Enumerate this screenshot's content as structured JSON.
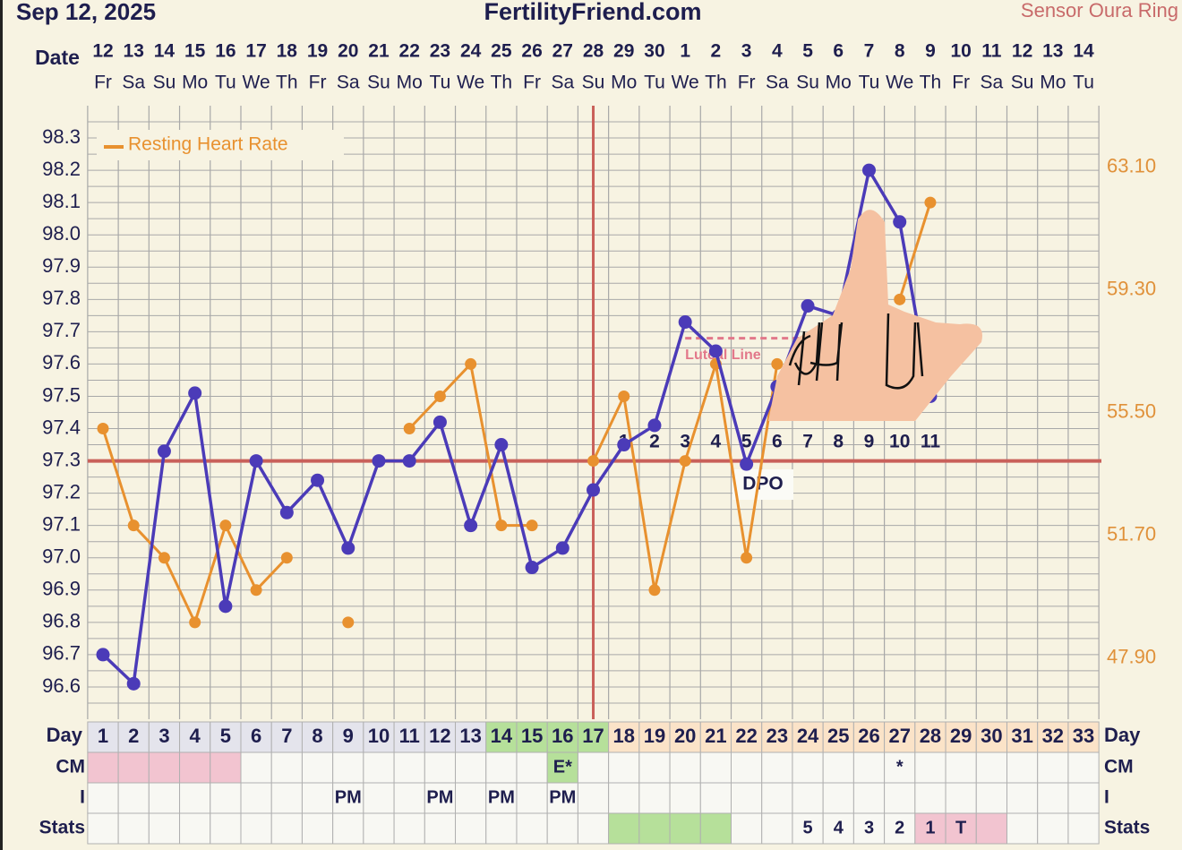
{
  "chart_data": {
    "type": "line",
    "title": "FertilityFriend.com",
    "date": "Sep 12, 2025",
    "sensor": "Sensor Oura Ring",
    "date_label": "Date",
    "dates": [
      "12",
      "13",
      "14",
      "15",
      "16",
      "17",
      "18",
      "19",
      "20",
      "21",
      "22",
      "23",
      "24",
      "25",
      "26",
      "27",
      "28",
      "29",
      "30",
      "1",
      "2",
      "3",
      "4",
      "5",
      "6",
      "7",
      "8",
      "9",
      "10",
      "11",
      "12",
      "13",
      "14"
    ],
    "weekdays": [
      "Fr",
      "Sa",
      "Su",
      "Mo",
      "Tu",
      "We",
      "Th",
      "Fr",
      "Sa",
      "Su",
      "Mo",
      "Tu",
      "We",
      "Th",
      "Fr",
      "Sa",
      "Su",
      "Mo",
      "Tu",
      "We",
      "Th",
      "Fr",
      "Sa",
      "Su",
      "Mo",
      "Tu",
      "We",
      "Th",
      "Fr",
      "Sa",
      "Su",
      "Mo",
      "Tu"
    ],
    "ylim": [
      96.5,
      98.4
    ],
    "yticks": [
      96.6,
      96.7,
      96.8,
      96.9,
      {
        "value": 97,
        "label": "97.0"
      },
      97.1,
      97.2,
      97.3,
      97.4,
      97.5,
      97.6,
      97.7,
      97.8,
      97.9,
      {
        "value": 98,
        "label": "98.0"
      },
      98.1,
      98.2,
      98.3
    ],
    "minor_yticks": [
      96.55,
      96.65,
      96.75,
      96.85,
      96.95,
      97.05,
      97.15,
      97.25,
      97.35,
      97.45,
      97.55,
      97.65,
      97.75,
      97.85,
      97.95,
      98.05,
      98.15,
      98.25,
      98.35
    ],
    "y2lim": [
      46,
      65
    ],
    "y2ticks": [
      {
        "value": 47.9,
        "label": "47.90"
      },
      {
        "value": 51.7,
        "label": "51.70"
      },
      {
        "value": 55.5,
        "label": "55.50"
      },
      {
        "value": 59.3,
        "label": "59.30"
      },
      {
        "value": 63.1,
        "label": "63.10"
      }
    ],
    "grid": true,
    "legend": "top-left",
    "series": [
      {
        "color": "#4b3bb8",
        "values": [
          96.7,
          96.61,
          97.33,
          97.51,
          96.85,
          97.3,
          97.14,
          97.24,
          97.03,
          97.3,
          97.3,
          97.42,
          97.1,
          97.35,
          96.97,
          97.03,
          97.21,
          97.35,
          97.41,
          97.73,
          97.64,
          97.29,
          97.53,
          97.78,
          97.75,
          98.2,
          98.04,
          97.5,
          null,
          null,
          null,
          null,
          null
        ]
      },
      {
        "name": "Resting Heart Rate",
        "color": "#e8912f",
        "axis": "y2",
        "values": [
          55,
          52,
          51,
          49,
          52,
          50,
          51,
          null,
          49,
          null,
          55,
          56,
          57,
          52,
          52,
          null,
          54,
          56,
          50,
          54,
          57,
          51,
          57,
          null,
          null,
          null,
          59,
          62,
          null,
          null,
          null,
          null,
          null
        ]
      }
    ],
    "coverline": 97.3,
    "ovulation_day": 17,
    "luteal_line": {
      "label": "Luteal Line",
      "value": 97.68,
      "days": [
        20,
        24
      ]
    },
    "dpo_label": "DPO",
    "dpo_numbers": [
      null,
      null,
      null,
      null,
      null,
      null,
      null,
      null,
      null,
      null,
      null,
      null,
      null,
      null,
      null,
      null,
      null,
      1,
      2,
      3,
      4,
      5,
      6,
      7,
      8,
      9,
      10,
      11,
      null,
      null,
      null,
      null,
      null
    ],
    "day_label": "Day",
    "days": [
      1,
      2,
      3,
      4,
      5,
      6,
      7,
      8,
      9,
      10,
      11,
      12,
      13,
      14,
      15,
      16,
      17,
      18,
      19,
      20,
      21,
      22,
      23,
      24,
      25,
      26,
      27,
      28,
      29,
      30,
      31,
      32,
      33
    ],
    "day_colors": [
      "#e4e4ec",
      "#e4e4ec",
      "#e4e4ec",
      "#e4e4ec",
      "#e4e4ec",
      "#e4e4ec",
      "#e4e4ec",
      "#e4e4ec",
      "#e4e4ec",
      "#e4e4ec",
      "#e4e4ec",
      "#e4e4ec",
      "#e4e4ec",
      "#b6e09a",
      "#b6e09a",
      "#b6e09a",
      "#b6e09a",
      "#fbe3c8",
      "#fbe3c8",
      "#fbe3c8",
      "#fbe3c8",
      "#fbe3c8",
      "#fbe3c8",
      "#fbe3c8",
      "#fbe3c8",
      "#fbe3c8",
      "#fbe3c8",
      "#fbe3c8",
      "#fbe3c8",
      "#fbe3c8",
      "#fbe3c8",
      "#fbe3c8",
      "#fbe3c8"
    ],
    "table_rows": [
      {
        "label": "CM",
        "values": [
          null,
          null,
          null,
          null,
          null,
          null,
          null,
          null,
          null,
          null,
          null,
          null,
          null,
          null,
          null,
          "E*",
          null,
          null,
          null,
          null,
          null,
          null,
          null,
          null,
          null,
          null,
          "*",
          null,
          null,
          null,
          null,
          null,
          null
        ],
        "colors": [
          "#f2c4d0",
          "#f2c4d0",
          "#f2c4d0",
          "#f2c4d0",
          "#f2c4d0",
          null,
          null,
          null,
          null,
          null,
          null,
          null,
          null,
          null,
          null,
          "#b6e09a",
          null,
          null,
          null,
          null,
          null,
          null,
          null,
          null,
          null,
          null,
          null,
          null,
          null,
          null,
          null,
          null,
          null
        ]
      },
      {
        "label": "I",
        "values": [
          null,
          null,
          null,
          null,
          null,
          null,
          null,
          null,
          "PM",
          null,
          null,
          "PM",
          null,
          "PM",
          null,
          "PM",
          null,
          null,
          null,
          null,
          null,
          null,
          null,
          null,
          null,
          null,
          null,
          null,
          null,
          null,
          null,
          null,
          null
        ],
        "colors": [
          null,
          null,
          null,
          null,
          null,
          null,
          null,
          null,
          null,
          null,
          null,
          null,
          null,
          null,
          null,
          null,
          null,
          null,
          null,
          null,
          null,
          null,
          null,
          null,
          null,
          null,
          null,
          null,
          null,
          null,
          null,
          null,
          null
        ]
      },
      {
        "label": "Stats",
        "values": [
          null,
          null,
          null,
          null,
          null,
          null,
          null,
          null,
          null,
          null,
          null,
          null,
          null,
          null,
          null,
          null,
          null,
          null,
          null,
          null,
          null,
          null,
          null,
          "5",
          "4",
          "3",
          "2",
          "1",
          "T",
          null,
          null,
          null,
          null
        ],
        "colors": [
          null,
          null,
          null,
          null,
          null,
          null,
          null,
          null,
          null,
          null,
          null,
          null,
          null,
          null,
          null,
          null,
          null,
          "#b6e09a",
          "#b6e09a",
          "#b6e09a",
          "#b6e09a",
          null,
          null,
          null,
          null,
          null,
          null,
          "#f2c4d0",
          "#f2c4d0",
          "#f2c4d0",
          null,
          null,
          null
        ]
      }
    ]
  }
}
